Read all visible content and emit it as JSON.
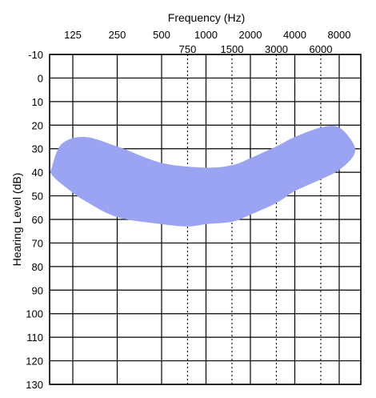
{
  "chart_data": {
    "type": "area",
    "title": "Frequency (Hz)",
    "xlabel": "Frequency (Hz)",
    "ylabel": "Hearing Level (dB)",
    "x_scale": "log2",
    "x_ticks_major": [
      "125",
      "250",
      "500",
      "1000",
      "2000",
      "4000",
      "8000"
    ],
    "x_ticks_minor": [
      "750",
      "1500",
      "3000",
      "6000"
    ],
    "y_ticks": [
      "-10",
      "0",
      "10",
      "20",
      "30",
      "40",
      "50",
      "60",
      "70",
      "80",
      "90",
      "100",
      "110",
      "120",
      "130"
    ],
    "ylim": [
      130,
      -10
    ],
    "y_inverted": true,
    "grid": true,
    "minor_grid_style": "dotted",
    "band_color": "#9aa4f2",
    "band": {
      "name": "",
      "upper": [
        {
          "freq": 90,
          "db": 38
        },
        {
          "freq": 105,
          "db": 28
        },
        {
          "freq": 150,
          "db": 25
        },
        {
          "freq": 250,
          "db": 29
        },
        {
          "freq": 500,
          "db": 36
        },
        {
          "freq": 1000,
          "db": 38
        },
        {
          "freq": 1500,
          "db": 37
        },
        {
          "freq": 2000,
          "db": 34
        },
        {
          "freq": 3000,
          "db": 29
        },
        {
          "freq": 4000,
          "db": 25
        },
        {
          "freq": 6000,
          "db": 21
        },
        {
          "freq": 8000,
          "db": 21
        },
        {
          "freq": 10000,
          "db": 28
        }
      ],
      "lower": [
        {
          "freq": 10000,
          "db": 33
        },
        {
          "freq": 8000,
          "db": 39
        },
        {
          "freq": 6000,
          "db": 43
        },
        {
          "freq": 4000,
          "db": 48
        },
        {
          "freq": 3000,
          "db": 53
        },
        {
          "freq": 2000,
          "db": 58
        },
        {
          "freq": 1500,
          "db": 61
        },
        {
          "freq": 1000,
          "db": 62
        },
        {
          "freq": 750,
          "db": 63
        },
        {
          "freq": 500,
          "db": 62
        },
        {
          "freq": 250,
          "db": 59
        },
        {
          "freq": 150,
          "db": 52
        },
        {
          "freq": 110,
          "db": 46
        },
        {
          "freq": 90,
          "db": 41
        }
      ]
    }
  }
}
